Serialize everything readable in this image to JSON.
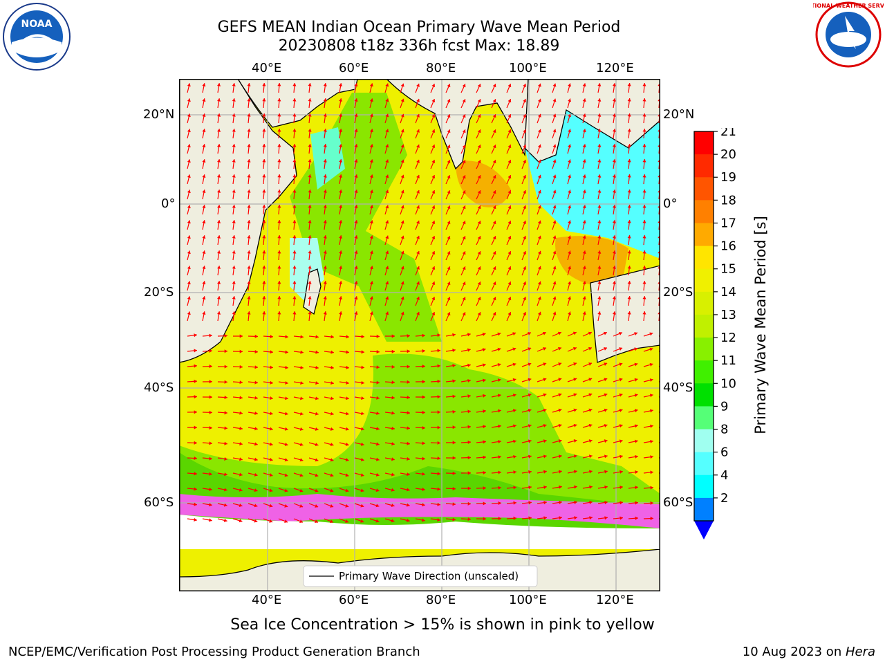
{
  "header": {
    "title_line1": "GEFS MEAN Indian Ocean Primary Wave Mean Period",
    "title_line2": "20230808 t18z 336h fcst   Max: 18.89"
  },
  "logos": {
    "left_logo_text": "NOAA",
    "right_logo_text": "NATIONAL WEATHER SERVICE"
  },
  "map": {
    "lon_ticks": [
      "40°E",
      "60°E",
      "80°E",
      "100°E",
      "120°E"
    ],
    "lat_ticks": [
      "20°N",
      "0°",
      "20°S",
      "40°S",
      "60°S"
    ],
    "legend_label": "Primary Wave Direction (unscaled)",
    "colors": {
      "land": "#efeedf",
      "arrow": "#ff0000",
      "grid": "#b0b0b0",
      "ice": "#ff55ff"
    }
  },
  "colorbar": {
    "label": "Primary Wave Mean Period [s]",
    "ticks": [
      "21",
      "20",
      "19",
      "18",
      "17",
      "16",
      "15",
      "14",
      "13",
      "12",
      "11",
      "10",
      "9",
      "8",
      "6",
      "4",
      "2"
    ],
    "colors": [
      "#ff0000",
      "#ff2a00",
      "#ff5500",
      "#ff8000",
      "#ffaa00",
      "#ffe500",
      "#f0f000",
      "#d8f000",
      "#c0f000",
      "#88f000",
      "#40f000",
      "#00e000",
      "#55ff77",
      "#a0fff0",
      "#55ffff",
      "#00ffff",
      "#0080ff"
    ],
    "extend_color": "#0000ff"
  },
  "footer": {
    "caption": "Sea Ice Concentration > 15% is shown in pink to yellow",
    "left": "NCEP/EMC/Verification Post Processing Product Generation Branch",
    "right_prefix": "10 Aug 2023 on ",
    "right_host": "Hera"
  }
}
